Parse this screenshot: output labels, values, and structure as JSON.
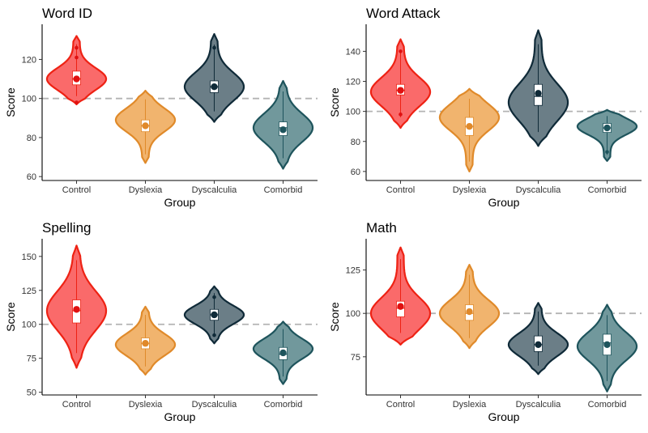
{
  "chart_data": [
    {
      "type": "violin",
      "title": "Word ID",
      "xlabel": "Group",
      "ylabel": "Score",
      "categories": [
        "Control",
        "Dyslexia",
        "Dyscalculia",
        "Comorbid"
      ],
      "ylim": [
        58,
        138
      ],
      "yticks": [
        60,
        80,
        100,
        120
      ],
      "reference_line": 100,
      "groups": [
        {
          "min": 97,
          "max": 132,
          "q1": 107,
          "median": 110,
          "q3": 114,
          "mean": 110,
          "mode": 110,
          "points": [
            98,
            121,
            126
          ]
        },
        {
          "min": 67,
          "max": 104,
          "q1": 83,
          "median": 86,
          "q3": 89,
          "mean": 86,
          "mode": 89,
          "points": []
        },
        {
          "min": 88,
          "max": 133,
          "q1": 103,
          "median": 106,
          "q3": 109,
          "mean": 106,
          "mode": 106,
          "points": [
            126
          ]
        },
        {
          "min": 64,
          "max": 109,
          "q1": 81,
          "median": 85,
          "q3": 88,
          "mean": 84,
          "mode": 85,
          "points": []
        }
      ]
    },
    {
      "type": "violin",
      "title": "Word Attack",
      "xlabel": "Group",
      "ylabel": "Score",
      "categories": [
        "Control",
        "Dyslexia",
        "Dyscalculia",
        "Comorbid"
      ],
      "ylim": [
        54,
        158
      ],
      "yticks": [
        60,
        80,
        100,
        120,
        140
      ],
      "reference_line": 100,
      "groups": [
        {
          "min": 89,
          "max": 148,
          "q1": 111,
          "median": 114,
          "q3": 118,
          "mean": 114,
          "mode": 113,
          "points": [
            98,
            140
          ]
        },
        {
          "min": 60,
          "max": 115,
          "q1": 84,
          "median": 90,
          "q3": 96,
          "mean": 90,
          "mode": 96,
          "points": []
        },
        {
          "min": 77,
          "max": 154,
          "q1": 104,
          "median": 110,
          "q3": 118,
          "mean": 112,
          "mode": 106,
          "points": []
        },
        {
          "min": 67,
          "max": 101,
          "q1": 86,
          "median": 89,
          "q3": 92,
          "mean": 89,
          "mode": 90,
          "points": [
            73
          ]
        }
      ]
    },
    {
      "type": "violin",
      "title": "Spelling",
      "xlabel": "Group",
      "ylabel": "Score",
      "categories": [
        "Control",
        "Dyslexia",
        "Dyscalculia",
        "Comorbid"
      ],
      "ylim": [
        48,
        163
      ],
      "yticks": [
        50,
        75,
        100,
        125,
        150
      ],
      "reference_line": 100,
      "groups": [
        {
          "min": 68,
          "max": 158,
          "q1": 101,
          "median": 110,
          "q3": 118,
          "mean": 111,
          "mode": 110,
          "points": []
        },
        {
          "min": 63,
          "max": 113,
          "q1": 82,
          "median": 86,
          "q3": 90,
          "mean": 86,
          "mode": 85,
          "points": []
        },
        {
          "min": 86,
          "max": 128,
          "q1": 103,
          "median": 107,
          "q3": 111,
          "mean": 107,
          "mode": 107,
          "points": [
            92,
            120
          ]
        },
        {
          "min": 56,
          "max": 102,
          "q1": 74,
          "median": 78,
          "q3": 83,
          "mean": 79,
          "mode": 82,
          "points": []
        }
      ]
    },
    {
      "type": "violin",
      "title": "Math",
      "xlabel": "Group",
      "ylabel": "Score",
      "categories": [
        "Control",
        "Dyslexia",
        "Dyscalculia",
        "Comorbid"
      ],
      "ylim": [
        53,
        143
      ],
      "yticks": [
        75,
        100,
        125
      ],
      "reference_line": 100,
      "groups": [
        {
          "min": 82,
          "max": 138,
          "q1": 98,
          "median": 103,
          "q3": 107,
          "mean": 104,
          "mode": 100,
          "points": []
        },
        {
          "min": 80,
          "max": 128,
          "q1": 96,
          "median": 100,
          "q3": 105,
          "mean": 101,
          "mode": 100,
          "points": []
        },
        {
          "min": 65,
          "max": 106,
          "q1": 78,
          "median": 82,
          "q3": 87,
          "mean": 82,
          "mode": 82,
          "points": []
        },
        {
          "min": 55,
          "max": 105,
          "q1": 76,
          "median": 83,
          "q3": 88,
          "mean": 82,
          "mode": 81,
          "points": []
        }
      ]
    }
  ],
  "group_colors": [
    {
      "fill": "#fa6a6a",
      "stroke": "#ee2214",
      "dot": "#e01010"
    },
    {
      "fill": "#f1b46e",
      "stroke": "#e08a2a",
      "dot": "#e0892a"
    },
    {
      "fill": "#6b7e87",
      "stroke": "#0f2a38",
      "dot": "#0f2a38"
    },
    {
      "fill": "#71989c",
      "stroke": "#1e545c",
      "dot": "#1e545c"
    }
  ],
  "reference_line_color": "#b3b3b3"
}
